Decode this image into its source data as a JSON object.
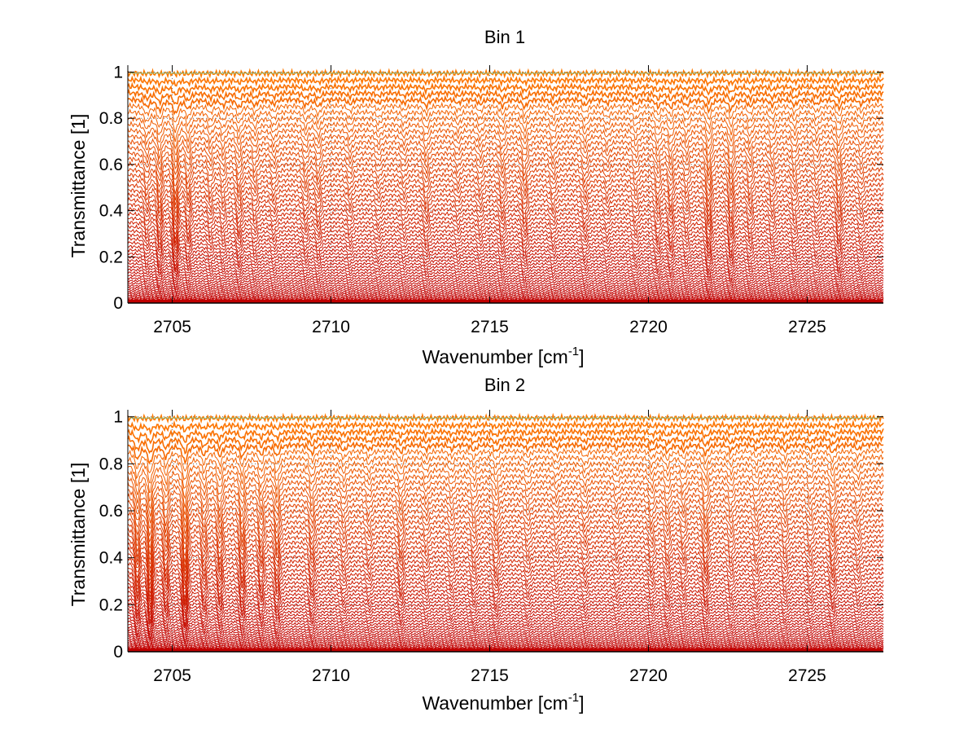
{
  "chart_data": [
    {
      "type": "line",
      "title": "Bin 1",
      "xlabel": "Wavenumber [cm",
      "xlabel_sup": "-1",
      "xlabel_end": "]",
      "ylabel": "Transmittance [1]",
      "xlim": [
        2703.6,
        2727.4
      ],
      "ylim": [
        0,
        1.03
      ],
      "xticks": [
        2705,
        2710,
        2715,
        2720,
        2725
      ],
      "xtick_labels": [
        "2705",
        "2710",
        "2715",
        "2720",
        "2725"
      ],
      "yticks": [
        0,
        0.2,
        0.4,
        0.6,
        0.8,
        1
      ],
      "ytick_labels": [
        "0",
        "0.2",
        "0.4",
        "0.6",
        "0.8",
        "1"
      ],
      "grid": true,
      "series_count": 60,
      "series_levels_range": [
        0.0,
        0.995
      ],
      "absorption_lines": [
        {
          "x": 2704.2,
          "depth": 0.35
        },
        {
          "x": 2704.6,
          "depth": 0.55
        },
        {
          "x": 2705.1,
          "depth": 0.7
        },
        {
          "x": 2705.5,
          "depth": 0.45
        },
        {
          "x": 2706.2,
          "depth": 0.3
        },
        {
          "x": 2706.6,
          "depth": 0.3
        },
        {
          "x": 2707.1,
          "depth": 0.4
        },
        {
          "x": 2707.6,
          "depth": 0.3
        },
        {
          "x": 2708.2,
          "depth": 0.25
        },
        {
          "x": 2709.2,
          "depth": 0.3
        },
        {
          "x": 2709.6,
          "depth": 0.35
        },
        {
          "x": 2710.6,
          "depth": 0.25
        },
        {
          "x": 2711.5,
          "depth": 0.2
        },
        {
          "x": 2712.3,
          "depth": 0.2
        },
        {
          "x": 2713.0,
          "depth": 0.35
        },
        {
          "x": 2714.0,
          "depth": 0.2
        },
        {
          "x": 2714.7,
          "depth": 0.25
        },
        {
          "x": 2715.4,
          "depth": 0.35
        },
        {
          "x": 2716.1,
          "depth": 0.4
        },
        {
          "x": 2717.0,
          "depth": 0.25
        },
        {
          "x": 2718.0,
          "depth": 0.3
        },
        {
          "x": 2718.7,
          "depth": 0.2
        },
        {
          "x": 2719.6,
          "depth": 0.25
        },
        {
          "x": 2720.3,
          "depth": 0.35
        },
        {
          "x": 2720.7,
          "depth": 0.4
        },
        {
          "x": 2721.2,
          "depth": 0.3
        },
        {
          "x": 2721.9,
          "depth": 0.55
        },
        {
          "x": 2722.6,
          "depth": 0.5
        },
        {
          "x": 2723.2,
          "depth": 0.35
        },
        {
          "x": 2723.9,
          "depth": 0.3
        },
        {
          "x": 2724.6,
          "depth": 0.3
        },
        {
          "x": 2725.3,
          "depth": 0.25
        },
        {
          "x": 2726.0,
          "depth": 0.45
        },
        {
          "x": 2726.7,
          "depth": 0.25
        }
      ]
    },
    {
      "type": "line",
      "title": "Bin 2",
      "xlabel": "Wavenumber [cm",
      "xlabel_sup": "-1",
      "xlabel_end": "]",
      "ylabel": "Transmittance [1]",
      "xlim": [
        2703.6,
        2727.4
      ],
      "ylim": [
        0,
        1.03
      ],
      "xticks": [
        2705,
        2710,
        2715,
        2720,
        2725
      ],
      "xtick_labels": [
        "2705",
        "2710",
        "2715",
        "2720",
        "2725"
      ],
      "yticks": [
        0,
        0.2,
        0.4,
        0.6,
        0.8,
        1
      ],
      "ytick_labels": [
        "0",
        "0.2",
        "0.4",
        "0.6",
        "0.8",
        "1"
      ],
      "grid": true,
      "series_count": 60,
      "series_levels_range": [
        0.0,
        0.995
      ],
      "absorption_lines": [
        {
          "x": 2703.9,
          "depth": 0.7
        },
        {
          "x": 2704.3,
          "depth": 0.9
        },
        {
          "x": 2704.8,
          "depth": 0.6
        },
        {
          "x": 2705.4,
          "depth": 0.85
        },
        {
          "x": 2706.0,
          "depth": 0.5
        },
        {
          "x": 2706.5,
          "depth": 0.55
        },
        {
          "x": 2707.2,
          "depth": 0.6
        },
        {
          "x": 2707.8,
          "depth": 0.5
        },
        {
          "x": 2708.3,
          "depth": 0.55
        },
        {
          "x": 2709.4,
          "depth": 0.45
        },
        {
          "x": 2710.4,
          "depth": 0.3
        },
        {
          "x": 2711.2,
          "depth": 0.25
        },
        {
          "x": 2712.2,
          "depth": 0.4
        },
        {
          "x": 2713.0,
          "depth": 0.25
        },
        {
          "x": 2713.8,
          "depth": 0.25
        },
        {
          "x": 2714.5,
          "depth": 0.3
        },
        {
          "x": 2715.2,
          "depth": 0.35
        },
        {
          "x": 2716.2,
          "depth": 0.25
        },
        {
          "x": 2717.1,
          "depth": 0.2
        },
        {
          "x": 2718.0,
          "depth": 0.25
        },
        {
          "x": 2719.0,
          "depth": 0.2
        },
        {
          "x": 2720.1,
          "depth": 0.3
        },
        {
          "x": 2720.6,
          "depth": 0.35
        },
        {
          "x": 2721.1,
          "depth": 0.3
        },
        {
          "x": 2721.8,
          "depth": 0.45
        },
        {
          "x": 2722.6,
          "depth": 0.3
        },
        {
          "x": 2723.4,
          "depth": 0.25
        },
        {
          "x": 2724.3,
          "depth": 0.3
        },
        {
          "x": 2725.1,
          "depth": 0.25
        },
        {
          "x": 2725.8,
          "depth": 0.4
        },
        {
          "x": 2726.6,
          "depth": 0.25
        }
      ]
    }
  ],
  "colors": {
    "line_low": "#c00000",
    "line_high": "#ff7a00",
    "top_accent": "#2fd3b0",
    "axis": "#000000",
    "grid": "#666666"
  }
}
